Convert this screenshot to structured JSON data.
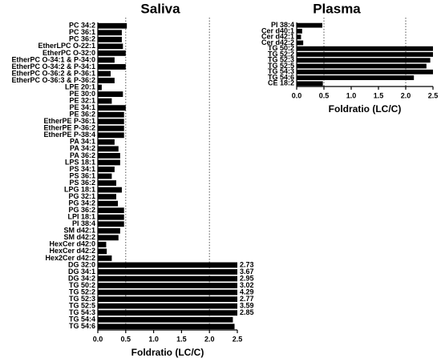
{
  "chart_data": [
    {
      "type": "barh",
      "title": "Saliva",
      "x_label": "Foldratio (LC/C)",
      "color": "#000000",
      "categories": [
        "PC 34:2",
        "PC 36:1",
        "PC 36:2",
        "EtherLPC O-22:1",
        "EtherPC O-32:0",
        "EtherPC O-34:1 & P-34:0",
        "EtherPC O-34:2 & P-34:1",
        "EtherPC O-36:2 & P-36:1",
        "EtherPC O-36:3 & P-36:2",
        "LPE 20:1",
        "PE 30:0",
        "PE 32:1",
        "PE 34:1",
        "PE 36:2",
        "EtherPE P-36:1",
        "EtherPE P-36:2",
        "EtherPE P-38:4",
        "PA 34:1",
        "PA 34:2",
        "PA 36:2",
        "LPS 18:1",
        "PS 34:1",
        "PS 36:1",
        "PS 36:2",
        "LPG 18:1",
        "PG 32:1",
        "PG 34:2",
        "PG 36:2",
        "LPI 18:1",
        "PI 38:4",
        "SM d42:1",
        "SM d42:2",
        "HexCer d42:0",
        "HexCer d42:2",
        "Hex2Cer d42:2",
        "DG 32:0",
        "DG 34:1",
        "DG 34:2",
        "TG 50:2",
        "TG 52:2",
        "TG 52:3",
        "TG 52:5",
        "TG 54:3",
        "TG 54:4",
        "TG 54:6"
      ],
      "values": [
        0.52,
        0.43,
        0.43,
        0.45,
        0.5,
        0.3,
        0.5,
        0.23,
        0.3,
        0.07,
        0.45,
        0.25,
        0.5,
        0.47,
        0.47,
        0.47,
        0.47,
        0.3,
        0.37,
        0.4,
        0.4,
        0.3,
        0.25,
        0.33,
        0.43,
        0.33,
        0.36,
        0.47,
        0.47,
        0.47,
        0.4,
        0.37,
        0.15,
        0.16,
        0.25,
        2.73,
        3.67,
        2.95,
        3.02,
        4.29,
        2.77,
        3.59,
        2.85,
        2.42,
        2.45
      ],
      "value_labels": [
        null,
        null,
        null,
        null,
        null,
        null,
        null,
        null,
        null,
        null,
        null,
        null,
        null,
        null,
        null,
        null,
        null,
        null,
        null,
        null,
        null,
        null,
        null,
        null,
        null,
        null,
        null,
        null,
        null,
        null,
        null,
        null,
        null,
        null,
        null,
        "2.73",
        "3.67",
        "2.95",
        "3.02",
        "4.29",
        "2.77",
        "3.59",
        "2.85",
        null,
        null
      ],
      "xlim": [
        0,
        2.5
      ],
      "xticks": [
        {
          "value": 0,
          "label": "0.0"
        },
        0.5,
        {
          "value": 1,
          "label": "1.0"
        },
        1.5,
        {
          "value": 2,
          "label": "2.0"
        },
        2.5
      ],
      "reference_lines": [
        0.5,
        2
      ]
    },
    {
      "type": "barh",
      "title": "Plasma",
      "x_label": "Foldratio (LC/C)",
      "color": "#000000",
      "categories": [
        "PI 38:4",
        "Cer d40:1",
        "Cer d42:1",
        "Cer d42:2",
        "TG 50:2",
        "TG 52:2",
        "TG 52:3",
        "TG 52:5",
        "TG 54:3",
        "TG 54:6",
        "CE 18:2"
      ],
      "values": [
        0.47,
        0.1,
        0.08,
        0.12,
        2.5,
        2.5,
        2.45,
        2.38,
        2.5,
        2.15,
        0.48
      ],
      "xlim": [
        0,
        2.5
      ],
      "xticks": [
        {
          "value": 0,
          "label": "0.0"
        },
        0.5,
        {
          "value": 1,
          "label": "1.0"
        },
        1.5,
        {
          "value": 2,
          "label": "2.0"
        },
        2.5
      ],
      "reference_lines": [
        0.5,
        2
      ]
    }
  ]
}
